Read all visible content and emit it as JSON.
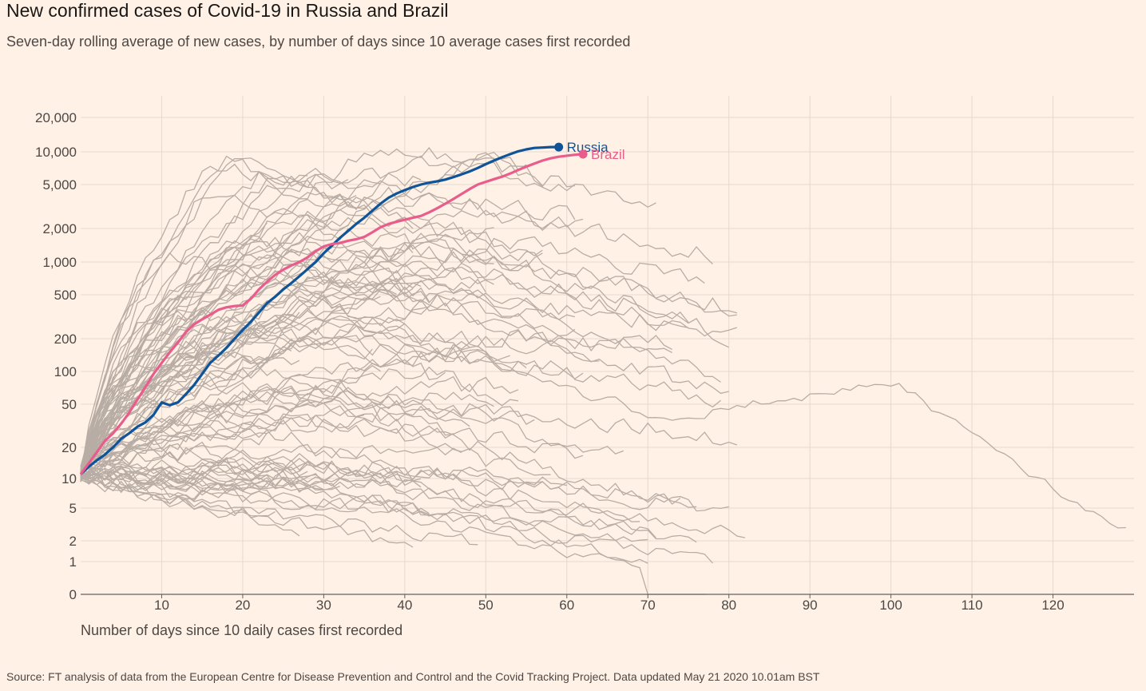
{
  "chart_data": {
    "type": "line",
    "title": "New confirmed cases of Covid-19 in Russia and Brazil",
    "subtitle": "Seven-day rolling average of new cases, by number of days since 10 average cases first recorded",
    "xlabel": "Number of days since 10 daily cases first recorded",
    "source": "Source: FT analysis of data from the European Centre for Disease Prevention and Control and the Covid Tracking Project. Data updated May 21 2020 10.01am BST",
    "xlim": [
      0,
      130
    ],
    "x_ticks": [
      10,
      20,
      30,
      40,
      50,
      60,
      70,
      80,
      90,
      100,
      110,
      120
    ],
    "y_scale": "log",
    "y_ticks": [
      {
        "value": 0,
        "label": "0"
      },
      {
        "value": 1,
        "label": "1"
      },
      {
        "value": 2,
        "label": "2"
      },
      {
        "value": 5,
        "label": "5"
      },
      {
        "value": 10,
        "label": "10"
      },
      {
        "value": 20,
        "label": "20"
      },
      {
        "value": 50,
        "label": "50"
      },
      {
        "value": 100,
        "label": "100"
      },
      {
        "value": 200,
        "label": "200"
      },
      {
        "value": 500,
        "label": "500"
      },
      {
        "value": 1000,
        "label": "1,000"
      },
      {
        "value": 2000,
        "label": "2,000"
      },
      {
        "value": 5000,
        "label": "5,000"
      },
      {
        "value": 10000,
        "label": "10,000"
      },
      {
        "value": 20000,
        "label": "20,000"
      }
    ],
    "grid": true,
    "highlight_series": [
      {
        "name": "Russia",
        "color": "#0f5499",
        "points": [
          [
            0,
            11
          ],
          [
            1,
            13
          ],
          [
            2,
            15
          ],
          [
            3,
            17
          ],
          [
            4,
            20
          ],
          [
            5,
            24
          ],
          [
            6,
            27
          ],
          [
            7,
            31
          ],
          [
            8,
            34
          ],
          [
            9,
            40
          ],
          [
            10,
            52
          ],
          [
            11,
            49
          ],
          [
            12,
            52
          ],
          [
            13,
            62
          ],
          [
            14,
            75
          ],
          [
            15,
            95
          ],
          [
            16,
            120
          ],
          [
            17,
            140
          ],
          [
            18,
            165
          ],
          [
            19,
            200
          ],
          [
            20,
            240
          ],
          [
            21,
            285
          ],
          [
            22,
            345
          ],
          [
            23,
            420
          ],
          [
            24,
            480
          ],
          [
            25,
            560
          ],
          [
            26,
            640
          ],
          [
            27,
            740
          ],
          [
            28,
            860
          ],
          [
            29,
            1000
          ],
          [
            30,
            1200
          ],
          [
            31,
            1400
          ],
          [
            32,
            1650
          ],
          [
            33,
            1900
          ],
          [
            34,
            2200
          ],
          [
            35,
            2500
          ],
          [
            36,
            2900
          ],
          [
            37,
            3350
          ],
          [
            38,
            3800
          ],
          [
            39,
            4150
          ],
          [
            40,
            4450
          ],
          [
            41,
            4750
          ],
          [
            42,
            5000
          ],
          [
            43,
            5200
          ],
          [
            44,
            5350
          ],
          [
            45,
            5550
          ],
          [
            46,
            5850
          ],
          [
            47,
            6200
          ],
          [
            48,
            6600
          ],
          [
            49,
            7100
          ],
          [
            50,
            7700
          ],
          [
            51,
            8300
          ],
          [
            52,
            8900
          ],
          [
            53,
            9500
          ],
          [
            54,
            10100
          ],
          [
            55,
            10500
          ],
          [
            56,
            10800
          ],
          [
            57,
            10900
          ],
          [
            58,
            11000
          ],
          [
            59,
            11000
          ]
        ]
      },
      {
        "name": "Brazil",
        "color": "#e95d8c",
        "points": [
          [
            0,
            11
          ],
          [
            1,
            14
          ],
          [
            2,
            18
          ],
          [
            3,
            23
          ],
          [
            4,
            27
          ],
          [
            5,
            33
          ],
          [
            6,
            42
          ],
          [
            7,
            55
          ],
          [
            8,
            72
          ],
          [
            9,
            95
          ],
          [
            10,
            120
          ],
          [
            11,
            150
          ],
          [
            12,
            185
          ],
          [
            13,
            230
          ],
          [
            14,
            270
          ],
          [
            15,
            300
          ],
          [
            16,
            330
          ],
          [
            17,
            365
          ],
          [
            18,
            385
          ],
          [
            19,
            395
          ],
          [
            20,
            400
          ],
          [
            21,
            460
          ],
          [
            22,
            560
          ],
          [
            23,
            660
          ],
          [
            24,
            760
          ],
          [
            25,
            850
          ],
          [
            26,
            930
          ],
          [
            27,
            1000
          ],
          [
            28,
            1100
          ],
          [
            29,
            1250
          ],
          [
            30,
            1380
          ],
          [
            31,
            1450
          ],
          [
            32,
            1480
          ],
          [
            33,
            1550
          ],
          [
            34,
            1600
          ],
          [
            35,
            1680
          ],
          [
            36,
            1850
          ],
          [
            37,
            2050
          ],
          [
            38,
            2200
          ],
          [
            39,
            2300
          ],
          [
            40,
            2400
          ],
          [
            41,
            2500
          ],
          [
            42,
            2600
          ],
          [
            43,
            2800
          ],
          [
            44,
            3050
          ],
          [
            45,
            3350
          ],
          [
            46,
            3700
          ],
          [
            47,
            4100
          ],
          [
            48,
            4550
          ],
          [
            49,
            5000
          ],
          [
            50,
            5300
          ],
          [
            51,
            5600
          ],
          [
            52,
            5900
          ],
          [
            53,
            6300
          ],
          [
            54,
            6800
          ],
          [
            55,
            7300
          ],
          [
            56,
            7800
          ],
          [
            57,
            8300
          ],
          [
            58,
            8700
          ],
          [
            59,
            9000
          ],
          [
            60,
            9200
          ],
          [
            61,
            9400
          ],
          [
            62,
            9500
          ]
        ]
      }
    ]
  }
}
